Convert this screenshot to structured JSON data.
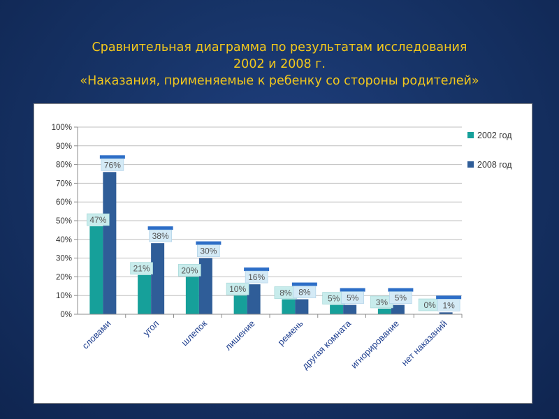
{
  "title": {
    "line1": "Сравнительная диаграмма по результатам исследования",
    "line2": "2002 и 2008 г.",
    "line3": "«Наказания, применяемые к ребенку со стороны родителей»"
  },
  "chart_data": {
    "type": "bar",
    "categories": [
      "словами",
      "угол",
      "шлепок",
      "лишение",
      "ремень",
      "другая комната",
      "игнорирование",
      "нет  наказаний"
    ],
    "series": [
      {
        "name": "2002 год",
        "values": [
          47,
          21,
          20,
          10,
          8,
          5,
          3,
          0
        ],
        "labels": [
          "47%",
          "21%",
          "20%",
          "10%",
          "8%",
          "5%",
          "3%",
          "0%"
        ]
      },
      {
        "name": "2008 год",
        "values": [
          76,
          38,
          30,
          16,
          8,
          5,
          5,
          1
        ],
        "labels": [
          "76%",
          "38%",
          "30%",
          "16%",
          "8%",
          "5%",
          "5%",
          "1%"
        ]
      }
    ],
    "y_ticks": [
      "0%",
      "10%",
      "20%",
      "30%",
      "40%",
      "50%",
      "60%",
      "70%",
      "80%",
      "90%",
      "100%"
    ],
    "ylim": [
      0,
      100
    ],
    "grid": true,
    "legend_position": "right",
    "colors": {
      "2002 год": "#16a09a",
      "2008 год": "#2f5d98"
    }
  }
}
